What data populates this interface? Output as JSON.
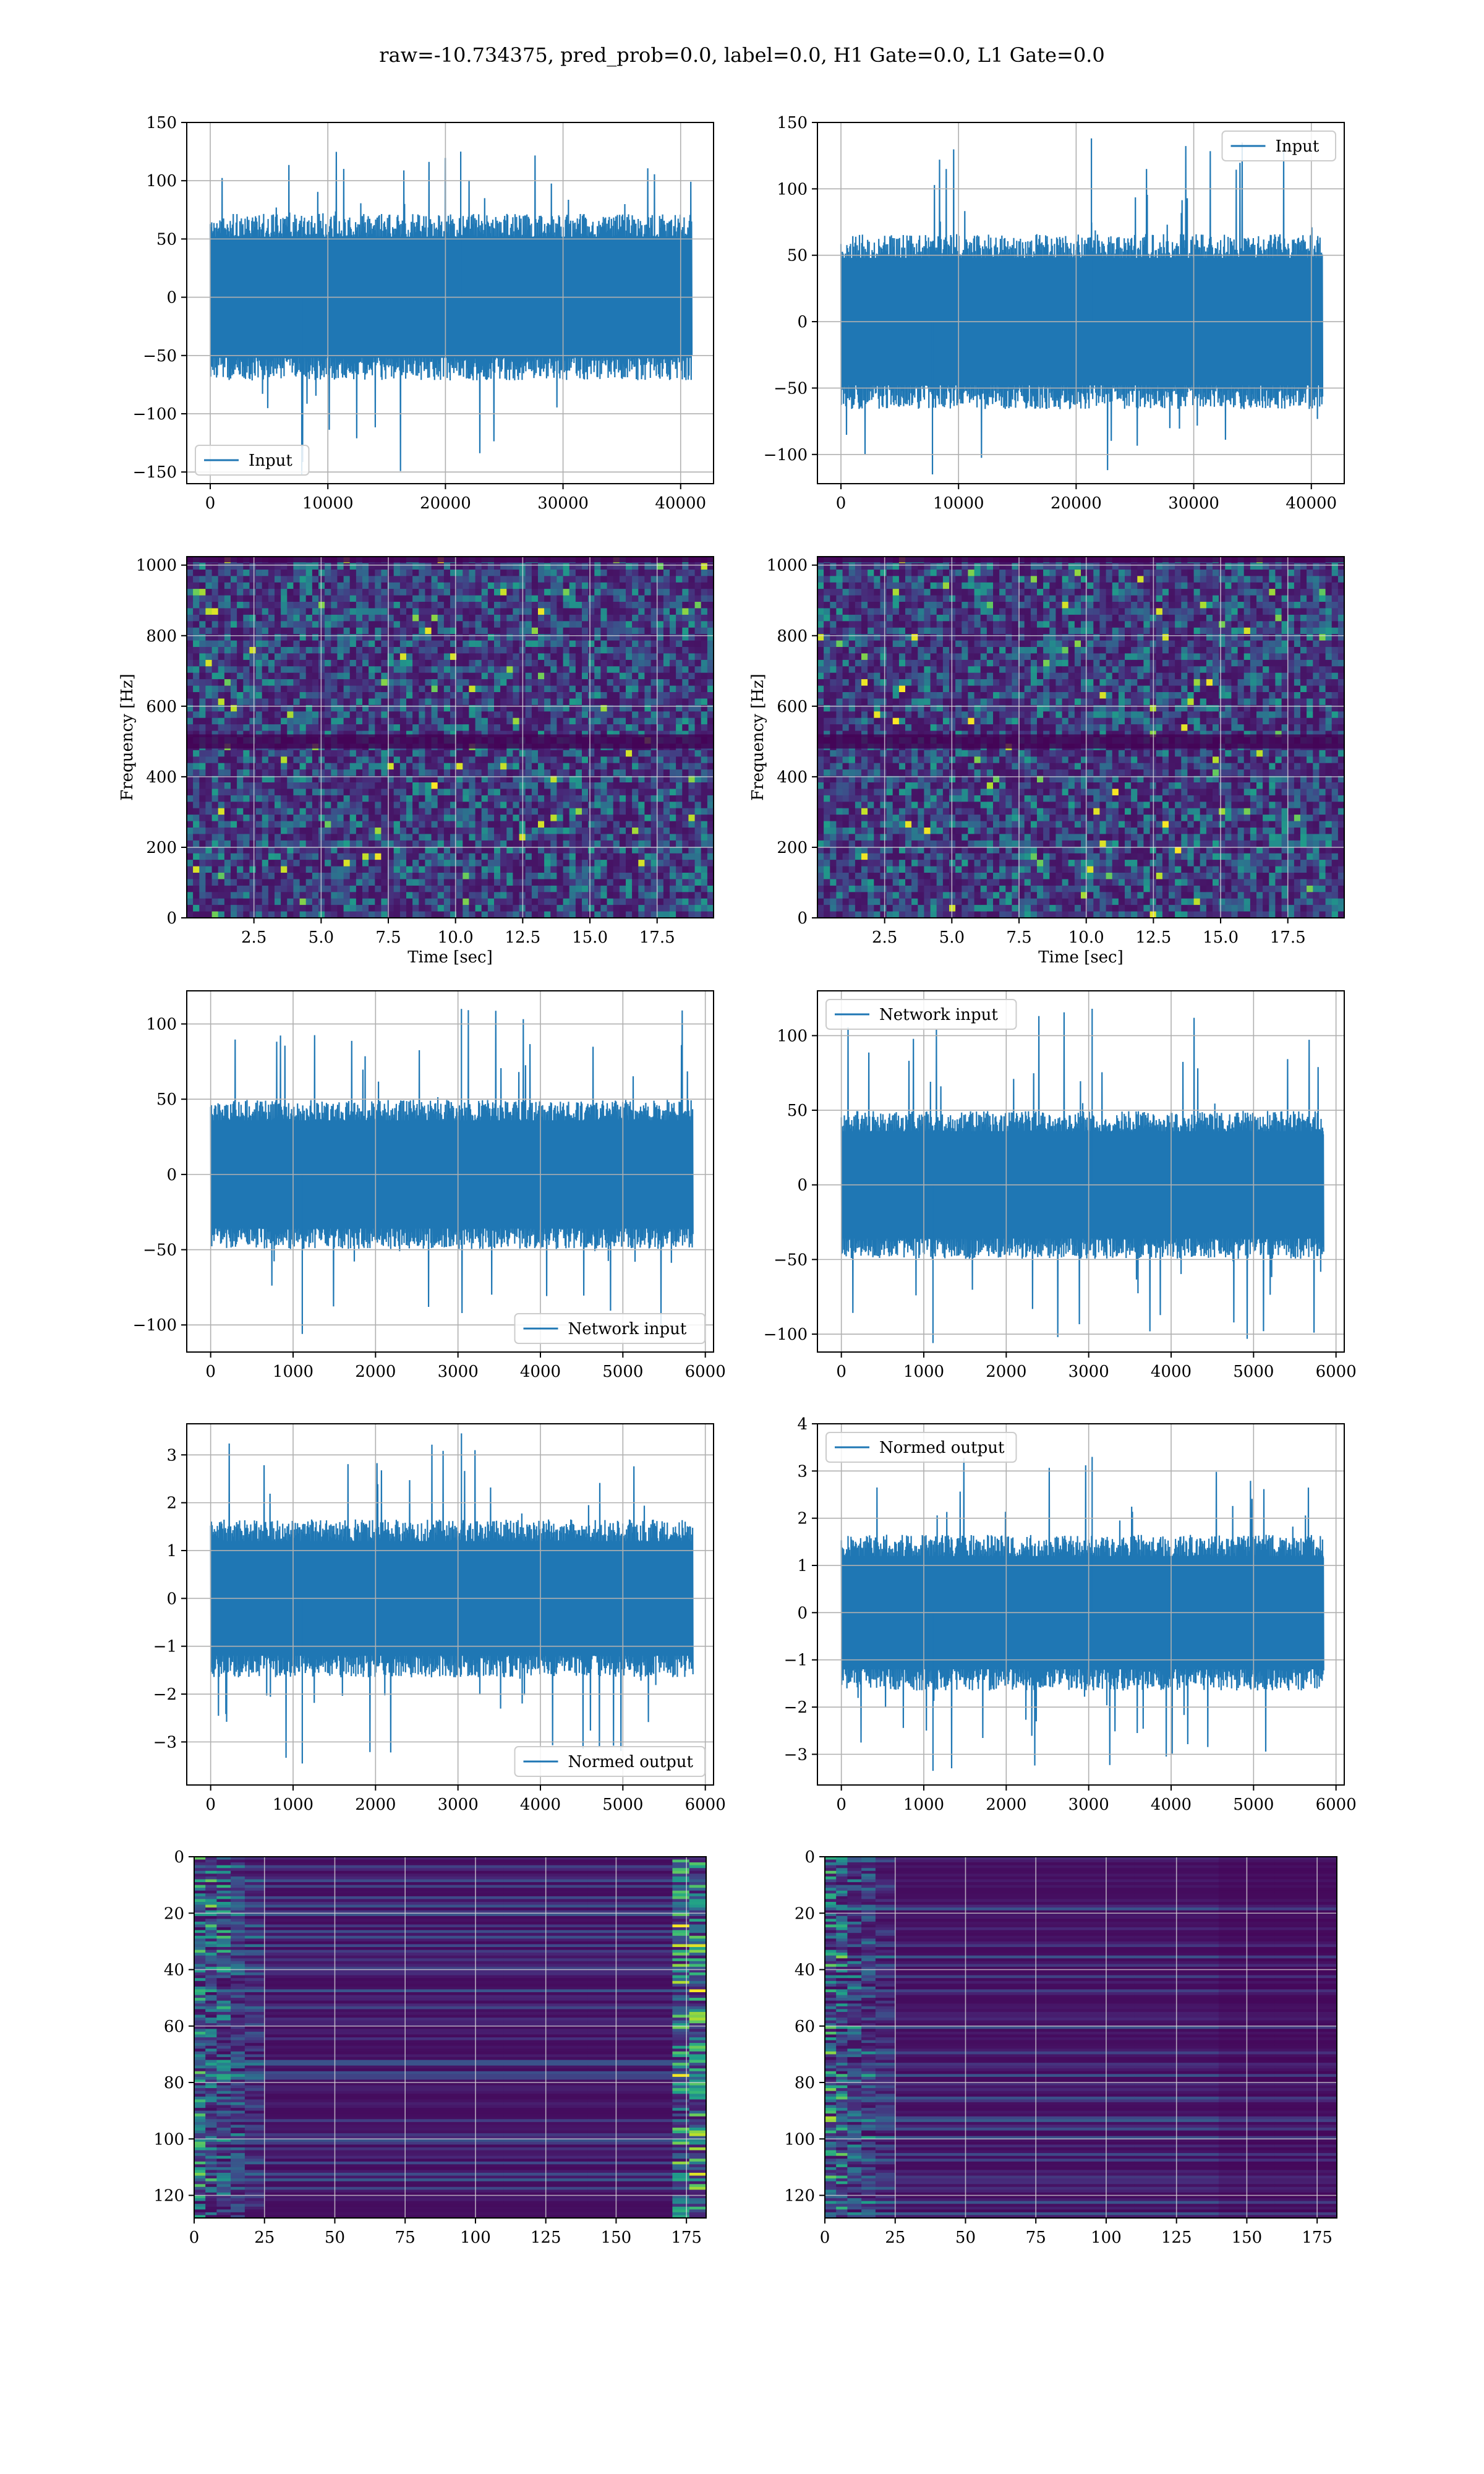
{
  "figure": {
    "suptitle": "raw=-10.734375, pred_prob=0.0, label=0.0, H1 Gate=0.0, L1 Gate=0.0",
    "line_color": "#1f77b4"
  },
  "chart_data": [
    {
      "id": "h1-input",
      "type": "line",
      "legend": "Input",
      "legend_loc": "lower-left",
      "xlim": [
        -2000,
        42800
      ],
      "ylim": [
        -160,
        150
      ],
      "xticks": [
        0,
        10000,
        20000,
        30000,
        40000
      ],
      "yticks": [
        -150,
        -100,
        -50,
        0,
        50,
        100,
        150
      ],
      "yticklabels": [
        "−150",
        "−100",
        "−50",
        "0",
        "50",
        "100",
        "150"
      ],
      "xlabel": "",
      "ylabel": "",
      "grid": true,
      "signal": {
        "x_start": 0,
        "x_end": 40960,
        "core_amplitude": 65,
        "peak_max": 125,
        "peak_min": -152
      }
    },
    {
      "id": "l1-input",
      "type": "line",
      "legend": "Input",
      "legend_loc": "upper-right",
      "xlim": [
        -2000,
        42800
      ],
      "ylim": [
        -122,
        150
      ],
      "xticks": [
        0,
        10000,
        20000,
        30000,
        40000
      ],
      "yticks": [
        -100,
        -50,
        0,
        50,
        100,
        150
      ],
      "yticklabels": [
        "−100",
        "−50",
        "0",
        "50",
        "100",
        "150"
      ],
      "xlabel": "",
      "ylabel": "",
      "grid": true,
      "signal": {
        "x_start": 0,
        "x_end": 40960,
        "core_amplitude": 60,
        "peak_max": 138,
        "peak_min": -115
      }
    },
    {
      "id": "h1-spectrogram",
      "type": "heatmap",
      "colormap": "viridis",
      "xlim": [
        0,
        19.6
      ],
      "ylim": [
        0,
        1024
      ],
      "xticks": [
        2.5,
        5.0,
        7.5,
        10.0,
        12.5,
        15.0,
        17.5
      ],
      "yticks": [
        0,
        200,
        400,
        600,
        800,
        1000
      ],
      "xticklabels": [
        "2.5",
        "5.0",
        "7.5",
        "10.0",
        "12.5",
        "15.0",
        "17.5"
      ],
      "yticklabels": [
        "0",
        "200",
        "400",
        "600",
        "800",
        "1000"
      ],
      "xlabel": "Time [sec]",
      "ylabel": "Frequency [Hz]",
      "grid": true
    },
    {
      "id": "l1-spectrogram",
      "type": "heatmap",
      "colormap": "viridis",
      "xlim": [
        0,
        19.6
      ],
      "ylim": [
        0,
        1024
      ],
      "xticks": [
        2.5,
        5.0,
        7.5,
        10.0,
        12.5,
        15.0,
        17.5
      ],
      "yticks": [
        0,
        200,
        400,
        600,
        800,
        1000
      ],
      "xticklabels": [
        "2.5",
        "5.0",
        "7.5",
        "10.0",
        "12.5",
        "15.0",
        "17.5"
      ],
      "yticklabels": [
        "0",
        "200",
        "400",
        "600",
        "800",
        "1000"
      ],
      "xlabel": "Time [sec]",
      "ylabel": "Frequency [Hz]",
      "grid": true
    },
    {
      "id": "h1-network-input",
      "type": "line",
      "legend": "Network input",
      "legend_loc": "lower-right",
      "xlim": [
        -290,
        6100
      ],
      "ylim": [
        -118,
        122
      ],
      "xticks": [
        0,
        1000,
        2000,
        3000,
        4000,
        5000,
        6000
      ],
      "yticks": [
        -100,
        -50,
        0,
        50,
        100
      ],
      "yticklabels": [
        "−100",
        "−50",
        "0",
        "50",
        "100"
      ],
      "xlabel": "",
      "ylabel": "",
      "grid": true,
      "signal": {
        "x_start": 0,
        "x_end": 5850,
        "core_amplitude": 45,
        "peak_max": 110,
        "peak_min": -106
      }
    },
    {
      "id": "l1-network-input",
      "type": "line",
      "legend": "Network input",
      "legend_loc": "upper-left",
      "xlim": [
        -290,
        6100
      ],
      "ylim": [
        -112,
        130
      ],
      "xticks": [
        0,
        1000,
        2000,
        3000,
        4000,
        5000,
        6000
      ],
      "yticks": [
        -100,
        -50,
        0,
        50,
        100
      ],
      "yticklabels": [
        "−100",
        "−50",
        "0",
        "50",
        "100"
      ],
      "xlabel": "",
      "ylabel": "",
      "grid": true,
      "signal": {
        "x_start": 0,
        "x_end": 5850,
        "core_amplitude": 45,
        "peak_max": 118,
        "peak_min": -106
      }
    },
    {
      "id": "h1-normed-output",
      "type": "line",
      "legend": "Normed output",
      "legend_loc": "lower-right",
      "xlim": [
        -290,
        6100
      ],
      "ylim": [
        -3.9,
        3.65
      ],
      "xticks": [
        0,
        1000,
        2000,
        3000,
        4000,
        5000,
        6000
      ],
      "yticks": [
        -3,
        -2,
        -1,
        0,
        1,
        2,
        3
      ],
      "yticklabels": [
        "−3",
        "−2",
        "−1",
        "0",
        "1",
        "2",
        "3"
      ],
      "xlabel": "",
      "ylabel": "",
      "grid": true,
      "signal": {
        "x_start": 0,
        "x_end": 5850,
        "core_amplitude": 1.5,
        "peak_max": 3.45,
        "peak_min": -3.45
      }
    },
    {
      "id": "l1-normed-output",
      "type": "line",
      "legend": "Normed output",
      "legend_loc": "upper-left",
      "xlim": [
        -290,
        6100
      ],
      "ylim": [
        -3.65,
        4.0
      ],
      "xticks": [
        0,
        1000,
        2000,
        3000,
        4000,
        5000,
        6000
      ],
      "yticks": [
        -3,
        -2,
        -1,
        0,
        1,
        2,
        3,
        4
      ],
      "yticklabels": [
        "−3",
        "−2",
        "−1",
        "0",
        "1",
        "2",
        "3",
        "4"
      ],
      "xlabel": "",
      "ylabel": "",
      "grid": true,
      "signal": {
        "x_start": 0,
        "x_end": 5850,
        "core_amplitude": 1.5,
        "peak_max": 3.3,
        "peak_min": -3.35
      }
    },
    {
      "id": "h1-feature-map",
      "type": "heatmap",
      "colormap": "viridis",
      "xlim": [
        0,
        182
      ],
      "ylim": [
        128,
        0
      ],
      "xticks": [
        0,
        25,
        50,
        75,
        100,
        125,
        150,
        175
      ],
      "yticks": [
        0,
        20,
        40,
        60,
        80,
        100,
        120
      ],
      "xticklabels": [
        "0",
        "25",
        "50",
        "75",
        "100",
        "125",
        "150",
        "175"
      ],
      "yticklabels": [
        "0",
        "20",
        "40",
        "60",
        "80",
        "100",
        "120"
      ],
      "xlabel": "",
      "ylabel": "",
      "grid": true
    },
    {
      "id": "l1-feature-map",
      "type": "heatmap",
      "colormap": "viridis",
      "xlim": [
        0,
        182
      ],
      "ylim": [
        128,
        0
      ],
      "xticks": [
        0,
        25,
        50,
        75,
        100,
        125,
        150,
        175
      ],
      "yticks": [
        0,
        20,
        40,
        60,
        80,
        100,
        120
      ],
      "xticklabels": [
        "0",
        "25",
        "50",
        "75",
        "100",
        "125",
        "150",
        "175"
      ],
      "yticklabels": [
        "0",
        "20",
        "40",
        "60",
        "80",
        "100",
        "120"
      ],
      "xlabel": "",
      "ylabel": "",
      "grid": true
    }
  ]
}
